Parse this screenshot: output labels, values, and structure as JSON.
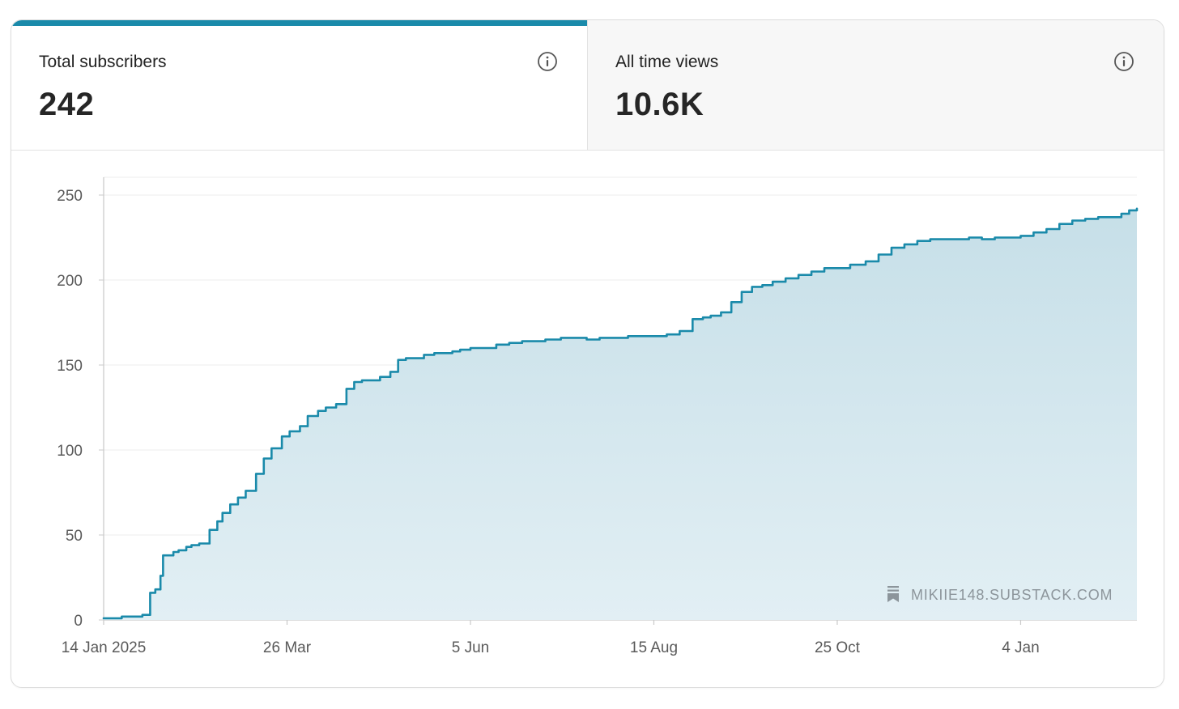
{
  "stats": {
    "subscribers": {
      "label": "Total subscribers",
      "value": "242",
      "icon": "info-icon"
    },
    "views": {
      "label": "All time views",
      "value": "10.6K",
      "icon": "info-icon"
    }
  },
  "colors": {
    "accent": "#1a8aaa",
    "fill_top": "#c6dfe8",
    "fill_bottom": "#e2eff4",
    "grid": "#ececec",
    "axis": "#c9c9c9",
    "tick_text": "#5a5a5a",
    "watermark": "#8c959b"
  },
  "watermark": {
    "text": "MIKIIE148.SUBSTACK.COM",
    "icon": "bookmark-icon"
  },
  "chart_data": {
    "type": "area",
    "title": "",
    "xlabel": "",
    "ylabel": "",
    "ylim": [
      0,
      250
    ],
    "yticks": [
      0,
      50,
      100,
      150,
      200,
      250
    ],
    "xlim": [
      "2025-01-14",
      "2026-02-18"
    ],
    "xticks": [
      {
        "date": "2025-01-14",
        "label": "14 Jan 2025"
      },
      {
        "date": "2025-03-26",
        "label": "26 Mar"
      },
      {
        "date": "2025-06-05",
        "label": "5 Jun"
      },
      {
        "date": "2025-08-15",
        "label": "15 Aug"
      },
      {
        "date": "2025-10-25",
        "label": "25 Oct"
      },
      {
        "date": "2026-01-04",
        "label": "4 Jan"
      }
    ],
    "grid": true,
    "series": [
      {
        "x": [
          "2025-01-14",
          "2025-01-19",
          "2025-01-21",
          "2025-01-29",
          "2025-01-30",
          "2025-02-01",
          "2025-02-03",
          "2025-02-05",
          "2025-02-06",
          "2025-02-10",
          "2025-02-12",
          "2025-02-15",
          "2025-02-17",
          "2025-02-20",
          "2025-02-24",
          "2025-02-27",
          "2025-03-01",
          "2025-03-04",
          "2025-03-07",
          "2025-03-10",
          "2025-03-14",
          "2025-03-17",
          "2025-03-20",
          "2025-03-24",
          "2025-03-27",
          "2025-03-31",
          "2025-04-03",
          "2025-04-07",
          "2025-04-10",
          "2025-04-14",
          "2025-04-18",
          "2025-04-21",
          "2025-04-24",
          "2025-04-28",
          "2025-05-01",
          "2025-05-05",
          "2025-05-08",
          "2025-05-11",
          "2025-05-15",
          "2025-05-18",
          "2025-05-22",
          "2025-05-26",
          "2025-05-29",
          "2025-06-01",
          "2025-06-05",
          "2025-06-10",
          "2025-06-15",
          "2025-06-20",
          "2025-06-25",
          "2025-06-30",
          "2025-07-04",
          "2025-07-10",
          "2025-07-15",
          "2025-07-20",
          "2025-07-25",
          "2025-07-31",
          "2025-08-05",
          "2025-08-10",
          "2025-08-15",
          "2025-08-20",
          "2025-08-25",
          "2025-08-30",
          "2025-09-03",
          "2025-09-06",
          "2025-09-10",
          "2025-09-14",
          "2025-09-18",
          "2025-09-22",
          "2025-09-26",
          "2025-09-30",
          "2025-10-05",
          "2025-10-10",
          "2025-10-15",
          "2025-10-20",
          "2025-10-25",
          "2025-10-30",
          "2025-11-05",
          "2025-11-10",
          "2025-11-15",
          "2025-11-20",
          "2025-11-25",
          "2025-11-30",
          "2025-12-05",
          "2025-12-10",
          "2025-12-15",
          "2025-12-20",
          "2025-12-25",
          "2025-12-30",
          "2026-01-04",
          "2026-01-09",
          "2026-01-14",
          "2026-01-19",
          "2026-01-24",
          "2026-01-29",
          "2026-02-03",
          "2026-02-08",
          "2026-02-12",
          "2026-02-15",
          "2026-02-18"
        ],
        "values": [
          1,
          1,
          2,
          3,
          3,
          16,
          18,
          26,
          38,
          40,
          41,
          43,
          44,
          45,
          53,
          58,
          63,
          68,
          72,
          76,
          86,
          95,
          101,
          108,
          111,
          114,
          120,
          123,
          125,
          127,
          136,
          140,
          141,
          141,
          143,
          146,
          153,
          154,
          154,
          156,
          157,
          157,
          158,
          159,
          160,
          160,
          162,
          163,
          164,
          164,
          165,
          166,
          166,
          165,
          166,
          166,
          167,
          167,
          167,
          168,
          170,
          177,
          178,
          179,
          181,
          187,
          193,
          196,
          197,
          199,
          201,
          203,
          205,
          207,
          207,
          209,
          211,
          215,
          219,
          221,
          223,
          224,
          224,
          224,
          225,
          224,
          225,
          225,
          226,
          228,
          230,
          233,
          235,
          236,
          237,
          237,
          239,
          241,
          242
        ]
      }
    ]
  }
}
